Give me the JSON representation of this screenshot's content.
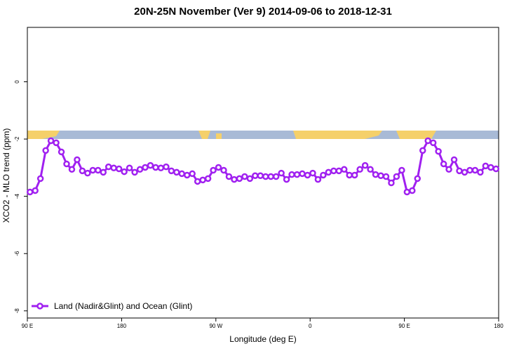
{
  "chart_data": {
    "type": "line",
    "title": "20N-25N November (Ver 9)   2014-09-06 to 2018-12-31",
    "x_label": "Longitude (deg E)",
    "y_label": "XCO2 - MLO trend (ppm)",
    "x": [
      92.5,
      97.5,
      102.5,
      107.5,
      112.5,
      117.5,
      122.5,
      127.5,
      132.5,
      137.5,
      142.5,
      147.5,
      152.5,
      157.5,
      162.5,
      167.5,
      172.5,
      177.5,
      182.5,
      187.5,
      192.5,
      197.5,
      202.5,
      207.5,
      212.5,
      217.5,
      222.5,
      227.5,
      232.5,
      237.5,
      242.5,
      247.5,
      252.5,
      257.5,
      262.5,
      267.5,
      272.5,
      277.5,
      282.5,
      287.5,
      292.5,
      297.5,
      302.5,
      307.5,
      312.5,
      317.5,
      322.5,
      327.5,
      332.5,
      337.5,
      342.5,
      347.5,
      352.5,
      357.5,
      362.5,
      367.5,
      372.5,
      377.5,
      382.5,
      387.5,
      392.5,
      397.5,
      402.5,
      407.5,
      412.5,
      417.5,
      422.5,
      427.5,
      432.5,
      437.5,
      442.5,
      447.5,
      452.5,
      457.5,
      462.5,
      467.5,
      472.5,
      477.5,
      482.5,
      487.5,
      492.5,
      497.5,
      502.5,
      507.5,
      512.5,
      517.5,
      522.5,
      527.5,
      532.5,
      537.5
    ],
    "series": [
      {
        "name": "Land (Nadir&Glint) and Ocean (Glint)",
        "color": "#a020f0",
        "values": [
          -3.85,
          -3.8,
          -3.38,
          -2.4,
          -2.06,
          -2.13,
          -2.45,
          -2.87,
          -3.06,
          -2.72,
          -3.11,
          -3.19,
          -3.09,
          -3.09,
          -3.16,
          -2.97,
          -3.01,
          -3.04,
          -3.14,
          -3.01,
          -3.16,
          -3.06,
          -2.99,
          -2.92,
          -2.99,
          -3.01,
          -2.97,
          -3.11,
          -3.16,
          -3.21,
          -3.26,
          -3.21,
          -3.48,
          -3.43,
          -3.38,
          -3.09,
          -2.99,
          -3.09,
          -3.31,
          -3.41,
          -3.38,
          -3.31,
          -3.38,
          -3.28,
          -3.28,
          -3.31,
          -3.31,
          -3.31,
          -3.19,
          -3.41,
          -3.24,
          -3.24,
          -3.21,
          -3.26,
          -3.19,
          -3.41,
          -3.26,
          -3.16,
          -3.11,
          -3.11,
          -3.06,
          -3.26,
          -3.26,
          -3.06,
          -2.92,
          -3.06,
          -3.24,
          -3.28,
          -3.31,
          -3.53,
          -3.31,
          -3.09,
          -3.85,
          -3.8,
          -3.38,
          -2.4,
          -2.06,
          -2.13,
          -2.43,
          -2.87,
          -3.06,
          -2.72,
          -3.11,
          -3.16,
          -3.09,
          -3.09,
          -3.16,
          -2.94,
          -2.99,
          -3.04
        ]
      }
    ],
    "xlim": [
      90,
      540
    ],
    "ylim": [
      -8.25,
      1.9
    ],
    "xticks": [
      {
        "value": 90,
        "label": "90 E"
      },
      {
        "value": 180,
        "label": "180"
      },
      {
        "value": 270,
        "label": "90 W"
      },
      {
        "value": 360,
        "label": "0"
      },
      {
        "value": 450,
        "label": "90 E"
      },
      {
        "value": 540,
        "label": "180"
      }
    ],
    "yticks": [
      0,
      -2,
      -4,
      -6,
      -8
    ],
    "legend": "bottom-left"
  }
}
